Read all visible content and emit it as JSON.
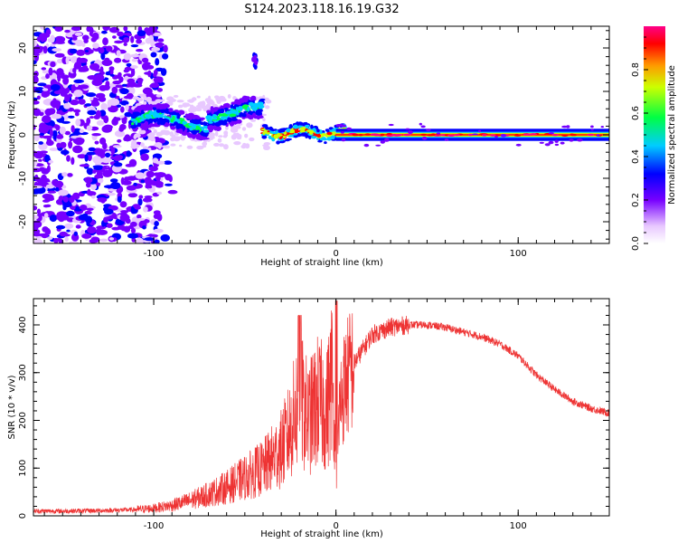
{
  "title": "S124.2023.118.16.19.G32",
  "colors": {
    "snr": "#ee3333",
    "axis": "#000000",
    "background": "#ffffff"
  },
  "chart_data": [
    {
      "type": "heatmap",
      "xlabel": "Height of straight line (km)",
      "ylabel": "Frequency (Hz)",
      "xlim": [
        -166,
        150
      ],
      "ylim": [
        -25,
        25
      ],
      "xticks": [
        -100,
        0,
        100
      ],
      "xtick_labels": [
        "-100",
        "0",
        "100"
      ],
      "yticks": [
        -20,
        -10,
        0,
        10,
        20
      ],
      "ytick_labels": [
        "-20",
        "-10",
        "0",
        "10",
        "20"
      ],
      "grid": false,
      "colorbar": {
        "label": "Normalized spectral amplitude",
        "range": [
          0,
          1
        ],
        "ticks": [
          0.0,
          0.2,
          0.4,
          0.6,
          0.8
        ],
        "tick_labels": [
          "0.0",
          "0.2",
          "0.4",
          "0.6",
          "0.8"
        ],
        "colormap": "rainbow (white → violet → blue → cyan → green → yellow → orange → red)"
      },
      "features": [
        {
          "region": "noise",
          "x_range": [
            -166,
            -100
          ],
          "freq_range": [
            -25,
            25
          ],
          "amplitude": "low"
        },
        {
          "region": "wandering tone",
          "x_range": [
            -112,
            -40
          ],
          "freq_center": 3,
          "freq_spread": 2.5,
          "amplitude": "medium"
        },
        {
          "region": "converging tone",
          "x_range": [
            -40,
            5
          ],
          "freq_center": 0.5,
          "freq_spread": 1,
          "amplitude": "high"
        },
        {
          "region": "stable tone",
          "x_range": [
            0,
            150
          ],
          "freq_center": 0,
          "freq_spread": 0.3,
          "amplitude": 1.0
        }
      ]
    },
    {
      "type": "line",
      "xlabel": "Height of straight line (km)",
      "ylabel": "SNR (10 * v/v)",
      "xlim": [
        -166,
        150
      ],
      "ylim": [
        0,
        455
      ],
      "xticks": [
        -100,
        0,
        100
      ],
      "xtick_labels": [
        "-100",
        "0",
        "100"
      ],
      "yticks": [
        0,
        100,
        200,
        300,
        400
      ],
      "ytick_labels": [
        "0",
        "100",
        "200",
        "300",
        "400"
      ],
      "grid": false,
      "series": [
        {
          "x": [
            -166,
            -150,
            -130,
            -110,
            -100,
            -90,
            -80,
            -70,
            -60,
            -50,
            -40,
            -30,
            -25,
            -20,
            -15,
            -10,
            -5,
            -2,
            0,
            2,
            5,
            10,
            15,
            20,
            30,
            40,
            50,
            60,
            70,
            80,
            90,
            100,
            110,
            120,
            130,
            140,
            150
          ],
          "values": [
            10,
            10,
            11,
            13,
            16,
            22,
            32,
            45,
            60,
            80,
            100,
            140,
            180,
            250,
            200,
            240,
            220,
            300,
            80,
            230,
            280,
            320,
            350,
            380,
            395,
            400,
            400,
            395,
            385,
            375,
            360,
            335,
            295,
            265,
            240,
            225,
            215
          ]
        }
      ]
    }
  ]
}
